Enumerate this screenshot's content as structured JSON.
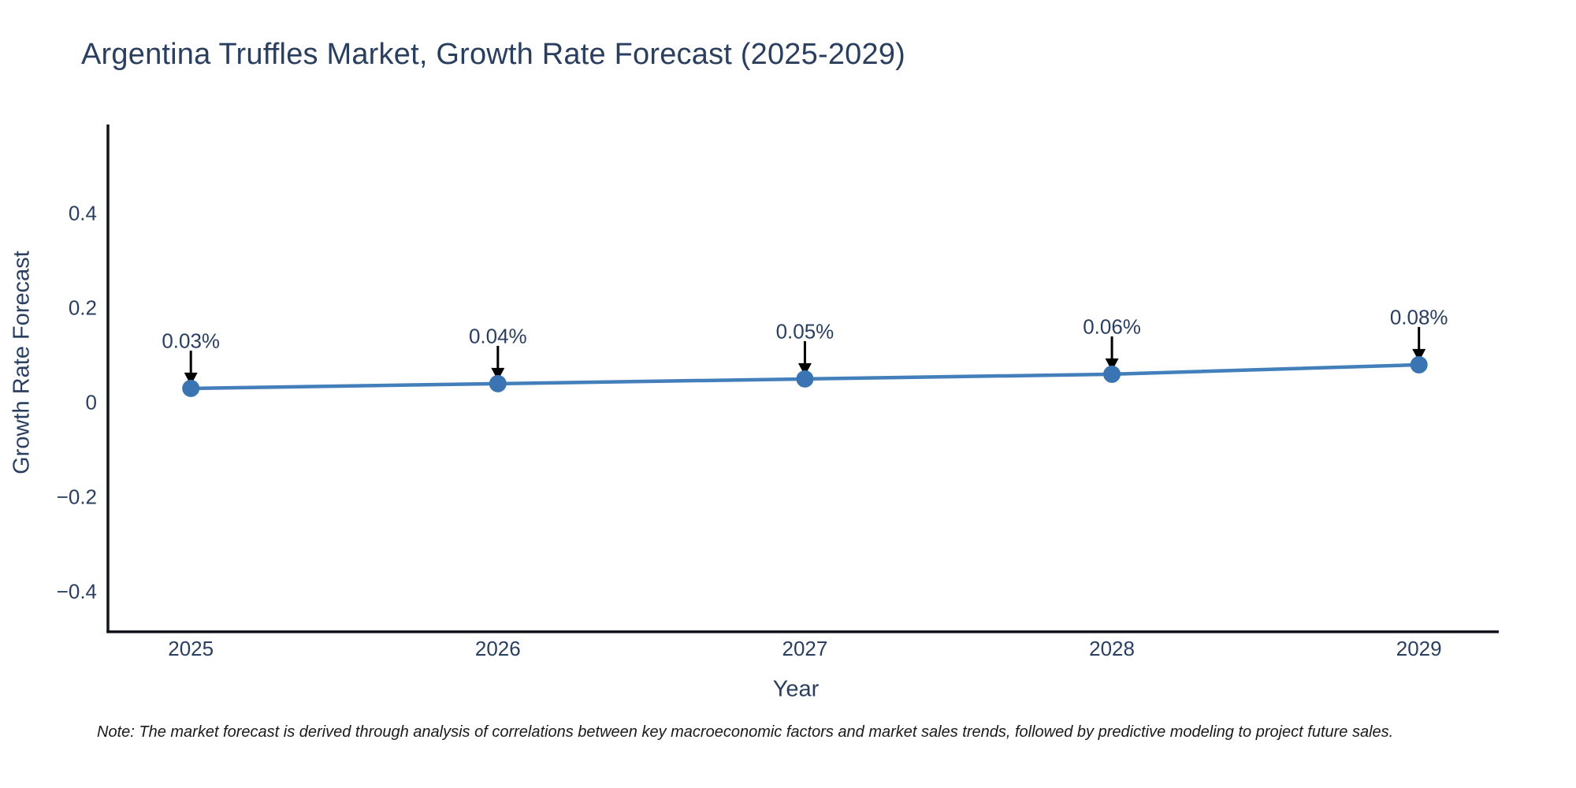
{
  "page": {
    "background": "#ffffff"
  },
  "chart_data": {
    "type": "line",
    "title": "Argentina Truffles Market, Growth Rate Forecast (2025-2029)",
    "xlabel": "Year",
    "ylabel": "Growth Rate Forecast",
    "x": [
      2025,
      2026,
      2027,
      2028,
      2029
    ],
    "x_tick_labels": [
      "2025",
      "2026",
      "2027",
      "2028",
      "2029"
    ],
    "series": [
      {
        "name": "Growth Rate Forecast",
        "values": [
          0.03,
          0.04,
          0.05,
          0.06,
          0.08
        ]
      }
    ],
    "point_labels": [
      "0.03%",
      "0.04%",
      "0.05%",
      "0.06%",
      "0.08%"
    ],
    "y_ticks": [
      0.4,
      0.2,
      0,
      -0.2,
      -0.4
    ],
    "y_tick_labels": [
      "0.4",
      "0.2",
      "0",
      "−0.2",
      "−0.4"
    ],
    "ylim": [
      -0.482,
      0.585
    ],
    "xlim": [
      2024.73,
      2029.26
    ],
    "grid": false,
    "legend_position": "none",
    "colors": {
      "line": "#4380bb",
      "marker": "#3a74b2",
      "arrow": "#000000",
      "axis": "#11141c",
      "title_text": "#2a3f5f",
      "tick_text": "#2a3f5f"
    }
  },
  "note": {
    "text": "Note: The market forecast is derived through analysis of correlations between key macroeconomic factors and market sales trends, followed by predictive modeling to project future sales."
  }
}
